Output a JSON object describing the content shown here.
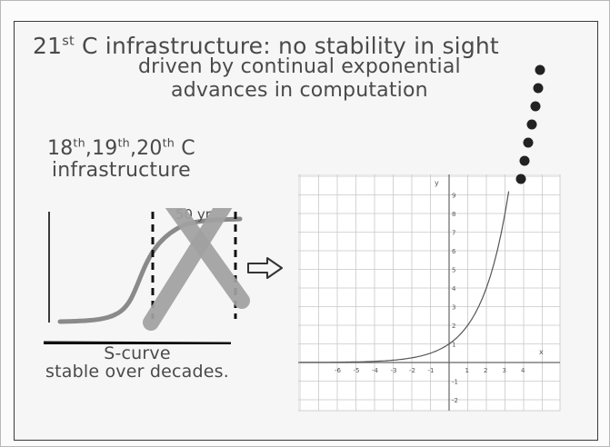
{
  "slide": {
    "title": {
      "num": "21",
      "sup": "st",
      "rest": " C infrastructure: no stability in sight",
      "sub1": "driven by continual exponential",
      "sub2": "advances in computation"
    },
    "left_heading": {
      "a": "18",
      "a_sup": "th",
      "b": ",19",
      "b_sup": "th",
      "c": ",20",
      "c_sup": "th",
      "d": " C",
      "line2": "infrastructure"
    },
    "period_label": "50 yr",
    "caption": {
      "line1": "S-curve",
      "line2": "stable over decades."
    },
    "graph": {
      "y_label": "y",
      "x_label": "x",
      "x_ticks": [
        "-6",
        "-5",
        "-4",
        "-3",
        "-2",
        "-1",
        "1",
        "2",
        "3",
        "4"
      ],
      "y_ticks": [
        "9",
        "8",
        "7",
        "6",
        "5",
        "4",
        "3",
        "2",
        "1",
        "-1",
        "-2"
      ]
    },
    "colors": {
      "ink": "#4a4a4a",
      "cross": "#9e9e9e",
      "grid": "#c4c4c4",
      "dots": "#222222"
    }
  }
}
